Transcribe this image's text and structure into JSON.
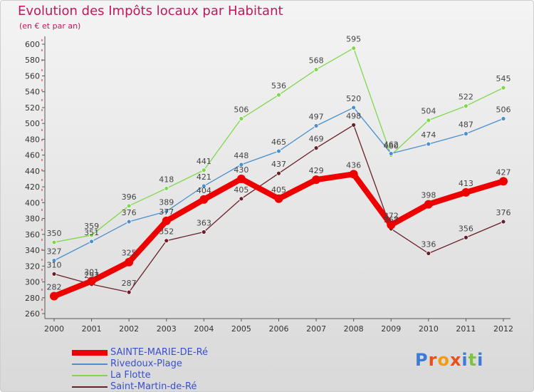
{
  "title": "Evolution des Impôts locaux par Habitant",
  "subtitle": "(en € et par an)",
  "logo_text": "Proxiti",
  "chart_data": {
    "type": "line",
    "x": [
      "2000",
      "2001",
      "2002",
      "2003",
      "2004",
      "2005",
      "2006",
      "2007",
      "2008",
      "2009",
      "2010",
      "2011",
      "2012"
    ],
    "ylim": [
      260,
      600
    ],
    "yticks": [
      260,
      280,
      300,
      320,
      340,
      360,
      380,
      400,
      420,
      440,
      460,
      480,
      500,
      520,
      540,
      560,
      580,
      600
    ],
    "grid": false,
    "series": [
      {
        "name": "Saint-Martin-de-Ré",
        "color": "#6b1f28",
        "values": [
          310,
          297,
          287,
          352,
          363,
          405,
          437,
          469,
          498,
          367,
          336,
          356,
          376
        ],
        "labels": [
          "310",
          "297",
          "287",
          "352",
          "363",
          "405",
          "437",
          "469",
          "498",
          "367",
          "336",
          "356",
          "376"
        ]
      },
      {
        "name": "La Flotte",
        "color": "#7fd84a",
        "values": [
          350,
          359,
          396,
          418,
          441,
          506,
          536,
          568,
          595,
          460,
          504,
          522,
          545
        ],
        "labels": [
          "350",
          "359",
          "396",
          "418",
          "441",
          "506",
          "536",
          "568",
          "595",
          "460",
          "504",
          "522",
          "545"
        ]
      },
      {
        "name": "Rivedoux-Plage",
        "color": "#4a8fd0",
        "values": [
          327,
          351,
          376,
          389,
          421,
          448,
          465,
          497,
          520,
          462,
          474,
          487,
          506
        ],
        "labels": [
          "327",
          "351",
          "376",
          "389",
          "421",
          "448",
          "465",
          "497",
          "520",
          "462",
          "474",
          "487",
          "506"
        ]
      },
      {
        "name": "SAINTE-MARIE-DE-Ré",
        "color": "#ee0000",
        "values": [
          282,
          301,
          325,
          377,
          404,
          430,
          405,
          429,
          436,
          372,
          398,
          413,
          427
        ],
        "labels": [
          "282",
          "301",
          "325",
          "377",
          "404",
          "430",
          "405",
          "429",
          "436",
          "372",
          "398",
          "413",
          "427"
        ]
      }
    ]
  },
  "legend": [
    {
      "label": "SAINTE-MARIE-DE-Ré",
      "color": "#ee0000"
    },
    {
      "label": "Rivedoux-Plage",
      "color": "#4a8fd0"
    },
    {
      "label": "La Flotte",
      "color": "#7fd84a"
    },
    {
      "label": "Saint-Martin-de-Ré",
      "color": "#6b1f28"
    }
  ]
}
